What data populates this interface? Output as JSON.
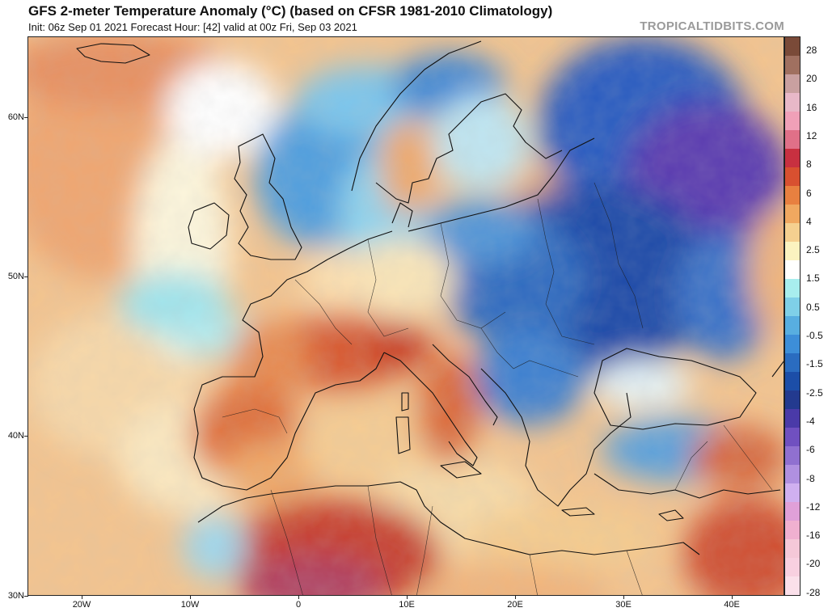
{
  "header": {
    "title": "GFS 2-meter Temperature Anomaly (°C) (based on CFSR 1981-2010 Climatology)",
    "subtitle": "Init: 06z Sep 01 2021   Forecast Hour: [42]   valid at 00z Fri, Sep 03 2021",
    "site": "TROPICALTIDBITS.COM"
  },
  "map": {
    "lat_labels": [
      "60N",
      "50N",
      "40N",
      "30N"
    ],
    "lon_labels": [
      "20W",
      "10W",
      "0",
      "10E",
      "20E",
      "30E",
      "40E"
    ],
    "ocean_color": "#f2c08a",
    "line_color": "#111111"
  },
  "colorbar": {
    "labels": [
      "28",
      "20",
      "16",
      "12",
      "8",
      "6",
      "4",
      "2.5",
      "1.5",
      "0.5",
      "-0.5",
      "-1.5",
      "-2.5",
      "-4",
      "-6",
      "-8",
      "-12",
      "-16",
      "-20",
      "-28"
    ],
    "colors": [
      "#7a4a38",
      "#a07060",
      "#c9a0a0",
      "#e8b8c8",
      "#f0a0b8",
      "#e07088",
      "#c83040",
      "#d85030",
      "#e88040",
      "#f0a860",
      "#f5d090",
      "#fbf3c0",
      "#ffffff",
      "#a8eeee",
      "#7fd0e8",
      "#58aee0",
      "#3d8ed8",
      "#2a6cc0",
      "#1c4ea8",
      "#233a8f",
      "#4a3aa8",
      "#7050c0",
      "#9070d0",
      "#b090e0",
      "#d0b0f0",
      "#e0a0d8",
      "#f0b0d0",
      "#f5c8d8",
      "#f8d0e0",
      "#fbe0ea"
    ]
  }
}
